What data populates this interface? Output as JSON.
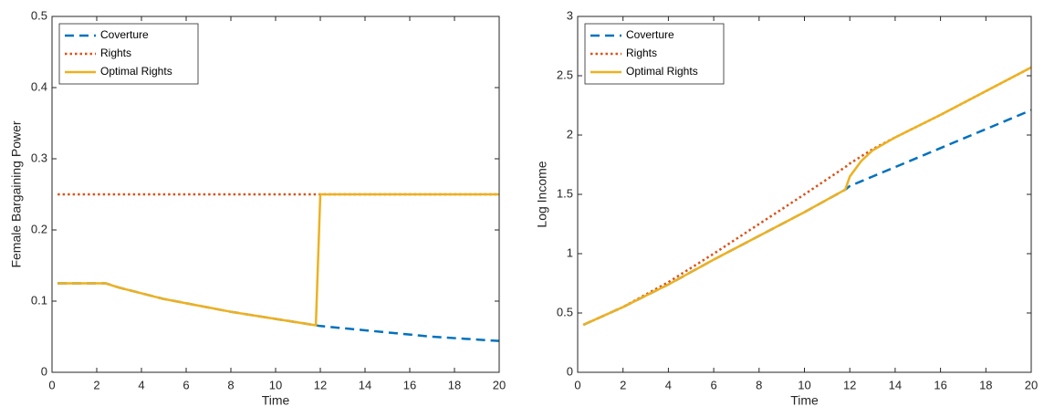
{
  "chart_data": [
    {
      "type": "line",
      "xlabel": "Time",
      "ylabel": "Female Bargaining Power",
      "x": [
        0.25,
        1,
        2,
        2.4,
        3,
        4,
        5,
        6,
        7,
        8,
        9,
        10,
        11,
        11.8,
        12,
        13,
        14,
        15,
        16,
        17,
        18,
        19,
        20
      ],
      "series": [
        {
          "name": "Coverture",
          "color": "#0072bd",
          "linestyle": "dashed",
          "values": [
            0.125,
            0.125,
            0.125,
            0.125,
            0.119,
            0.111,
            0.103,
            0.097,
            0.091,
            0.085,
            0.08,
            0.075,
            0.07,
            0.066,
            0.065,
            0.062,
            0.059,
            0.056,
            0.053,
            0.05,
            0.048,
            0.046,
            0.044
          ]
        },
        {
          "name": "Rights",
          "color": "#d95319",
          "linestyle": "dotted",
          "values": [
            0.25,
            0.25,
            0.25,
            0.25,
            0.25,
            0.25,
            0.25,
            0.25,
            0.25,
            0.25,
            0.25,
            0.25,
            0.25,
            0.25,
            0.25,
            0.25,
            0.25,
            0.25,
            0.25,
            0.25,
            0.25,
            0.25,
            0.25
          ]
        },
        {
          "name": "Optimal Rights",
          "color": "#edb120",
          "linestyle": "solid",
          "values": [
            0.125,
            0.125,
            0.125,
            0.125,
            0.119,
            0.111,
            0.103,
            0.097,
            0.091,
            0.085,
            0.08,
            0.075,
            0.07,
            0.066,
            0.25,
            0.25,
            0.25,
            0.25,
            0.25,
            0.25,
            0.25,
            0.25,
            0.25
          ]
        }
      ],
      "xlim": [
        0,
        20
      ],
      "xticks": [
        0,
        2,
        4,
        6,
        8,
        10,
        12,
        14,
        16,
        18,
        20
      ],
      "ylim": [
        0,
        0.5
      ],
      "yticks": [
        0,
        0.1,
        0.2,
        0.3,
        0.4,
        0.5
      ],
      "grid": false,
      "legend": "upper-left"
    },
    {
      "type": "line",
      "xlabel": "Time",
      "ylabel": "Log Income",
      "x": [
        0.25,
        2,
        4,
        6,
        8,
        10,
        11.8,
        12,
        12.5,
        13,
        14,
        16,
        18,
        20
      ],
      "series": [
        {
          "name": "Coverture",
          "color": "#0072bd",
          "linestyle": "dashed",
          "values": [
            0.4,
            0.55,
            0.74,
            0.95,
            1.15,
            1.35,
            1.54,
            1.57,
            1.61,
            1.65,
            1.73,
            1.89,
            2.05,
            2.21
          ]
        },
        {
          "name": "Rights",
          "color": "#d95319",
          "linestyle": "dotted",
          "values": [
            0.4,
            0.55,
            0.76,
            1.0,
            1.25,
            1.5,
            1.73,
            1.76,
            1.82,
            1.88,
            1.98,
            2.17,
            2.37,
            2.57
          ]
        },
        {
          "name": "Optimal Rights",
          "color": "#edb120",
          "linestyle": "solid",
          "values": [
            0.4,
            0.55,
            0.74,
            0.95,
            1.15,
            1.35,
            1.54,
            1.65,
            1.78,
            1.87,
            1.98,
            2.17,
            2.37,
            2.57
          ]
        }
      ],
      "xlim": [
        0,
        20
      ],
      "xticks": [
        0,
        2,
        4,
        6,
        8,
        10,
        12,
        14,
        16,
        18,
        20
      ],
      "ylim": [
        0,
        3
      ],
      "yticks": [
        0,
        0.5,
        1,
        1.5,
        2,
        2.5,
        3
      ],
      "grid": false,
      "legend": "upper-left"
    }
  ]
}
